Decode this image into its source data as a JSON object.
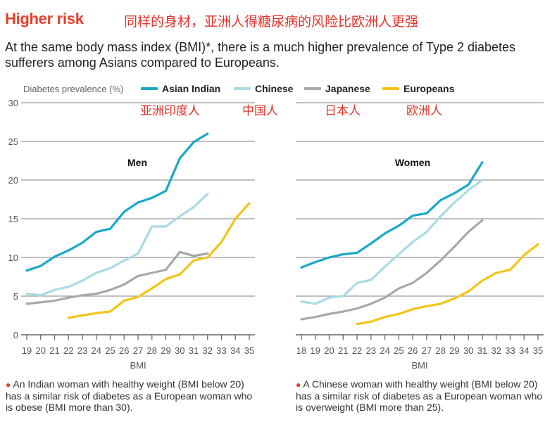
{
  "header": {
    "title": "Higher risk",
    "title_cn": "同样的身材，亚洲人得糖尿病的风险比欧洲人更强",
    "subtitle": "At the same body mass index (BMI)*, there is a much higher prevalence of Type 2 diabetes sufferers among Asians compared to Europeans."
  },
  "legend": {
    "ylabel": "Diabetes prevalence (%)",
    "items": [
      {
        "name": "Asian Indian",
        "cn": "亚洲印度人",
        "color": "#1aa8c8"
      },
      {
        "name": "Chinese",
        "cn": "中国人",
        "color": "#a9dbe3"
      },
      {
        "name": "Japanese",
        "cn": "日本人",
        "color": "#a6a9ab"
      },
      {
        "name": "Europeans",
        "cn": "欧洲人",
        "color": "#f2c41a"
      }
    ]
  },
  "notes": [
    {
      "text": "An Indian woman with healthy weight (BMI below 20) has a similar risk of diabetes as a European woman who is obese (BMI more than 30)."
    },
    {
      "text": "A Chinese woman with healthy weight (BMI below 20) has a similar risk of diabetes as a European woman who is overweight (BMI more than 25)."
    }
  ],
  "chart_data": [
    {
      "type": "line",
      "title": "Men",
      "xlabel": "BMI",
      "ylabel": "Diabetes prevalence (%)",
      "xlim": [
        19,
        35
      ],
      "ylim": [
        0,
        30
      ],
      "yticks": [
        0,
        5,
        10,
        15,
        20,
        25,
        30
      ],
      "xticks": [
        19,
        20,
        21,
        22,
        23,
        24,
        25,
        26,
        27,
        28,
        29,
        30,
        31,
        32,
        33,
        34,
        35
      ],
      "grid": true,
      "series": [
        {
          "name": "Asian Indian",
          "color": "#1aa8c8",
          "x": [
            19,
            20,
            21,
            22,
            23,
            24,
            25,
            26,
            27,
            28,
            29,
            30,
            31,
            32
          ],
          "values": [
            8.3,
            8.9,
            10.1,
            10.9,
            11.9,
            13.3,
            13.7,
            15.9,
            17.1,
            17.7,
            18.6,
            22.8,
            24.9,
            26.0
          ]
        },
        {
          "name": "Chinese",
          "color": "#a9dbe3",
          "x": [
            19,
            20,
            21,
            22,
            23,
            24,
            25,
            26,
            27,
            28,
            29,
            30,
            31,
            32
          ],
          "values": [
            5.3,
            5.1,
            5.8,
            6.2,
            7.0,
            8.0,
            8.6,
            9.6,
            10.5,
            14.0,
            14.0,
            15.3,
            16.5,
            18.2
          ]
        },
        {
          "name": "Japanese",
          "color": "#a6a9ab",
          "x": [
            19,
            20,
            21,
            22,
            23,
            24,
            25,
            26,
            27,
            28,
            29,
            30,
            31,
            32
          ],
          "values": [
            4.0,
            4.2,
            4.4,
            4.8,
            5.1,
            5.3,
            5.8,
            6.5,
            7.6,
            8.0,
            8.4,
            10.7,
            10.2,
            10.5
          ]
        },
        {
          "name": "Europeans",
          "color": "#f2c41a",
          "x": [
            22,
            23,
            24,
            25,
            26,
            27,
            28,
            29,
            30,
            31,
            32,
            33,
            34,
            35
          ],
          "values": [
            2.2,
            2.5,
            2.8,
            3.0,
            4.4,
            4.9,
            6.0,
            7.2,
            7.8,
            9.6,
            10.0,
            12.0,
            15.0,
            17.0
          ]
        }
      ]
    },
    {
      "type": "line",
      "title": "Women",
      "xlabel": "BMI",
      "ylabel": "Diabetes prevalence (%)",
      "xlim": [
        18,
        35
      ],
      "ylim": [
        0,
        30
      ],
      "yticks": [
        0,
        5,
        10,
        15,
        20,
        25,
        30
      ],
      "xticks": [
        18,
        19,
        20,
        21,
        22,
        23,
        24,
        25,
        26,
        27,
        28,
        29,
        30,
        31,
        32,
        33,
        34,
        35
      ],
      "grid": true,
      "series": [
        {
          "name": "Asian Indian",
          "color": "#1aa8c8",
          "x": [
            18,
            19,
            20,
            21,
            22,
            23,
            24,
            25,
            26,
            27,
            28,
            29,
            30,
            31
          ],
          "values": [
            8.7,
            9.4,
            10.0,
            10.4,
            10.6,
            11.8,
            13.1,
            14.1,
            15.4,
            15.7,
            17.4,
            18.3,
            19.4,
            22.3
          ]
        },
        {
          "name": "Chinese",
          "color": "#a9dbe3",
          "x": [
            18,
            19,
            20,
            21,
            22,
            23,
            24,
            25,
            26,
            27,
            28,
            29,
            30,
            31
          ],
          "values": [
            4.3,
            4.0,
            4.8,
            5.0,
            6.7,
            7.1,
            8.8,
            10.4,
            12.0,
            13.3,
            15.3,
            17.1,
            18.7,
            20.0
          ]
        },
        {
          "name": "Japanese",
          "color": "#a6a9ab",
          "x": [
            18,
            19,
            20,
            21,
            22,
            23,
            24,
            25,
            26,
            27,
            28,
            29,
            30,
            31
          ],
          "values": [
            2.0,
            2.3,
            2.7,
            3.0,
            3.4,
            4.0,
            4.8,
            6.0,
            6.7,
            8.0,
            9.6,
            11.4,
            13.3,
            14.8
          ]
        },
        {
          "name": "Europeans",
          "color": "#f2c41a",
          "x": [
            22,
            23,
            24,
            25,
            26,
            27,
            28,
            29,
            30,
            31,
            32,
            33,
            34,
            35
          ],
          "values": [
            1.4,
            1.7,
            2.3,
            2.7,
            3.3,
            3.7,
            4.0,
            4.7,
            5.6,
            7.0,
            8.0,
            8.4,
            10.3,
            11.7
          ]
        }
      ]
    }
  ]
}
